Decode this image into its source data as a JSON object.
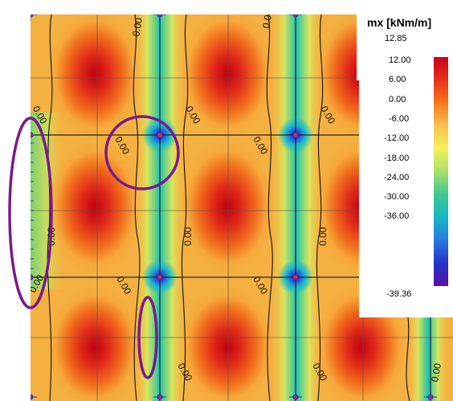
{
  "legend": {
    "title": "mx [kNm/m]",
    "max_value": "12.85",
    "min_value": "-39.36",
    "ticks": [
      "12.00",
      "6.00",
      "0.00",
      "-6.00",
      "-12.00",
      "-18.00",
      "-24.00",
      "-30.00",
      "-36.00"
    ],
    "colors": [
      "#c8001a",
      "#e83018",
      "#f7781a",
      "#f9c050",
      "#f2f25a",
      "#a8e06a",
      "#3cc890",
      "#16b8c8",
      "#2878e0",
      "#2434c8",
      "#5a10a8"
    ]
  },
  "contour_label": "0.00",
  "highlight_color": "#7a1a8c"
}
